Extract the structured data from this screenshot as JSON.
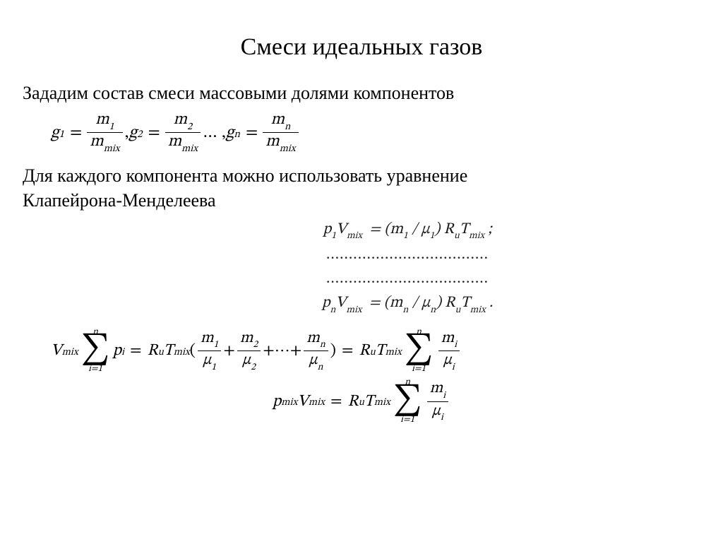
{
  "title": "Смеси идеальных газов",
  "para1": "Зададим состав смеси массовыми долями компонентов",
  "para2_line1": "Для каждого компонента можно использовать уравнение",
  "para2_line2": "Клапейрона-Менделеева",
  "eq1": {
    "g1": "g",
    "sub1": "1",
    "m1": "m",
    "msub1": "1",
    "mmix": "m",
    "mmixsub": "mix",
    "g2": "g",
    "sub2": "2",
    "m2": "m",
    "msub2": "2",
    "gn": "g",
    "subn": "n",
    "mn": "m",
    "msubn": "n",
    "eq": "=",
    "comma_sep": " , ",
    "ellipsis": " … , "
  },
  "clapeyron": {
    "row1": "p₁V_mix = (m₁ / μ₁) R_u T_mix ;",
    "dots": "....................................",
    "rown": "pₙV_mix = (mₙ / μₙ) R_u T_mix ."
  },
  "vars": {
    "V": "V",
    "mix": "mix",
    "p": "p",
    "i": "i",
    "R": "R",
    "u": "u",
    "T": "T",
    "m": "m",
    "mu": "μ",
    "one": "1",
    "two": "2",
    "n": "n",
    "eq": "=",
    "plus": "+",
    "ell": "⋯",
    "lparen": "(",
    "rparen": ")",
    "sum_upper": "n",
    "sum_lower": "i=1",
    "Sigma": "∑",
    "pmix": "p"
  }
}
